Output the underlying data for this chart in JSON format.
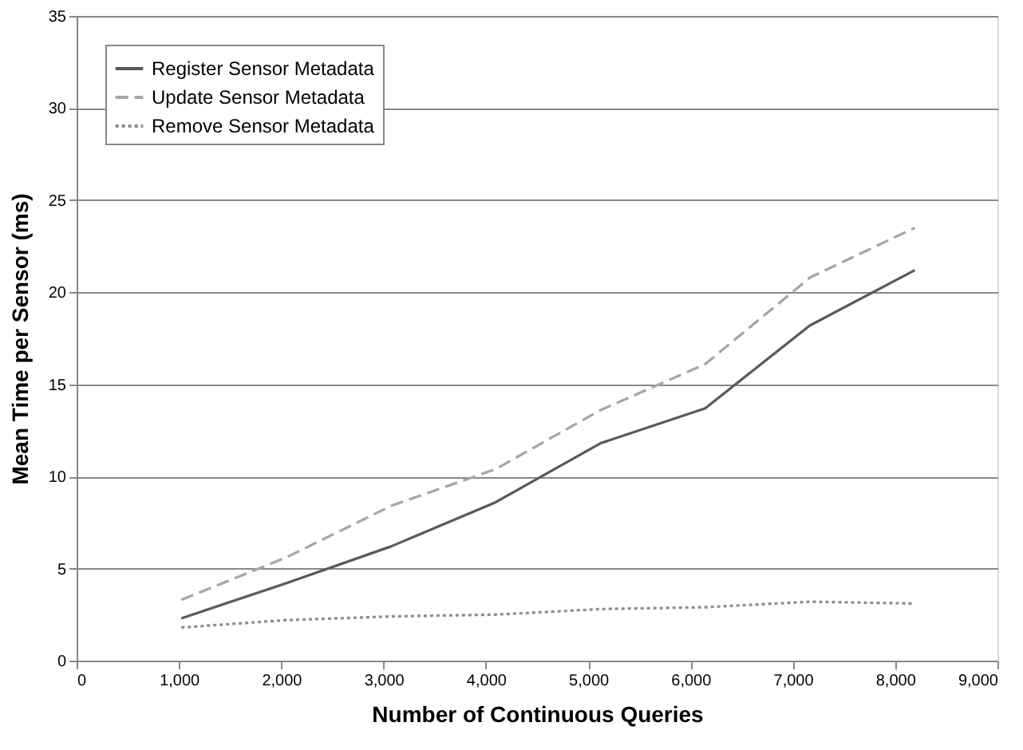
{
  "chart_data": {
    "type": "line",
    "xlabel": "Number of Continuous Queries",
    "ylabel": "Mean Time per Sensor (ms)",
    "x": [
      1024,
      2048,
      3072,
      4096,
      5120,
      6144,
      7168,
      8192
    ],
    "series": [
      {
        "name": "Register Sensor Metadata",
        "color": "#595959",
        "line_style": "solid",
        "values": [
          2.3,
          4.2,
          6.2,
          8.6,
          11.8,
          13.7,
          18.2,
          21.2
        ]
      },
      {
        "name": "Update Sensor Metadata",
        "color": "#a6a6a6",
        "line_style": "dashed",
        "values": [
          3.3,
          5.6,
          8.4,
          10.4,
          13.6,
          16.1,
          20.8,
          23.5
        ]
      },
      {
        "name": "Remove Sensor Metadata",
        "color": "#8c8c8c",
        "line_style": "dotted",
        "values": [
          1.8,
          2.2,
          2.4,
          2.5,
          2.8,
          2.9,
          3.2,
          3.1
        ]
      }
    ],
    "xlim": [
      0,
      9000
    ],
    "xticks": [
      0,
      {
        "value": 1000,
        "label": "1,000"
      },
      {
        "value": 2000,
        "label": "2,000"
      },
      {
        "value": 3000,
        "label": "3,000"
      },
      {
        "value": 4000,
        "label": "4,000"
      },
      {
        "value": 5000,
        "label": "5,000"
      },
      {
        "value": 6000,
        "label": "6,000"
      },
      {
        "value": 7000,
        "label": "7,000"
      },
      {
        "value": 8000,
        "label": "8,000"
      },
      {
        "value": 9000,
        "label": "9,000"
      }
    ],
    "ylim": [
      0,
      35
    ],
    "yticks": [
      0,
      5,
      10,
      15,
      20,
      25,
      30,
      35
    ],
    "grid": "y",
    "legend": "top left",
    "marker": "none"
  }
}
